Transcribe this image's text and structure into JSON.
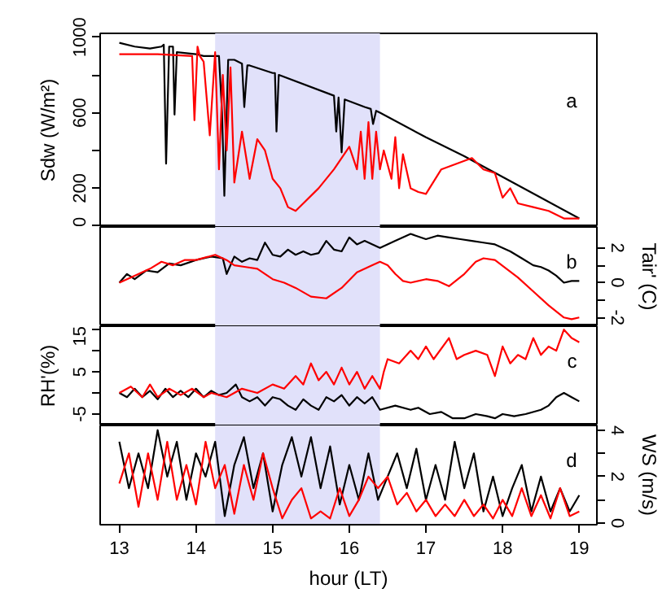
{
  "chart_data": [
    {
      "type": "line",
      "ylabel": "Sdw (W/m²)",
      "xlim": [
        12.75,
        19.23
      ],
      "ylim": [
        -5,
        1020
      ],
      "yticks": [
        0,
        200,
        {
          "value": 400,
          "label": null
        },
        600,
        {
          "value": 800,
          "label": null
        },
        1000
      ],
      "tick_labels": "y",
      "grid": false,
      "annotations": [
        "a"
      ],
      "bands": [
        {
          "axis": "x",
          "from": 14.25,
          "to": 16.4,
          "color": "#e1e1fa"
        }
      ],
      "series": [
        {
          "color": "#000000",
          "x": [
            13.0,
            13.2,
            13.4,
            13.55,
            13.58,
            13.61,
            13.65,
            13.7,
            13.72,
            13.75,
            14.0,
            14.1,
            14.3,
            14.34,
            14.37,
            14.42,
            14.5,
            14.6,
            14.63,
            14.67,
            14.7,
            15.0,
            15.03,
            15.05,
            15.08,
            15.8,
            15.83,
            15.86,
            15.9,
            15.94,
            16.2,
            16.28,
            16.31,
            16.35,
            16.4,
            17.0,
            17.5,
            18.0,
            18.5,
            19.0
          ],
          "values": [
            970,
            950,
            940,
            950,
            960,
            330,
            950,
            950,
            590,
            920,
            910,
            900,
            900,
            600,
            160,
            880,
            880,
            860,
            630,
            850,
            850,
            810,
            810,
            500,
            800,
            690,
            500,
            680,
            390,
            670,
            630,
            620,
            540,
            610,
            600,
            470,
            370,
            260,
            150,
            40
          ]
        },
        {
          "color": "#ff0000",
          "x": [
            13.0,
            13.5,
            13.95,
            13.98,
            14.02,
            14.05,
            14.1,
            14.18,
            14.25,
            14.3,
            14.35,
            14.4,
            14.45,
            14.5,
            14.6,
            14.7,
            14.8,
            14.9,
            15.0,
            15.1,
            15.2,
            15.3,
            15.4,
            15.6,
            15.8,
            16.0,
            16.1,
            16.15,
            16.2,
            16.25,
            16.3,
            16.35,
            16.4,
            16.45,
            16.55,
            16.6,
            16.65,
            16.7,
            16.8,
            16.9,
            17.0,
            17.2,
            17.4,
            17.6,
            17.75,
            17.9,
            18.0,
            18.1,
            18.2,
            18.4,
            18.6,
            18.8,
            19.0
          ],
          "values": [
            910,
            910,
            900,
            560,
            950,
            900,
            870,
            480,
            920,
            300,
            800,
            400,
            840,
            230,
            500,
            250,
            460,
            400,
            250,
            200,
            100,
            80,
            120,
            200,
            300,
            420,
            300,
            500,
            250,
            550,
            250,
            500,
            300,
            400,
            250,
            470,
            200,
            380,
            200,
            180,
            170,
            300,
            330,
            360,
            300,
            280,
            150,
            200,
            120,
            100,
            80,
            40,
            40
          ]
        }
      ]
    },
    {
      "type": "line",
      "y2label": "Tair' (C)",
      "xlim": [
        12.75,
        19.23
      ],
      "y2lim": [
        -2.5,
        3.2
      ],
      "y2ticks": [
        -2,
        {
          "value": -1,
          "label": null
        },
        0,
        {
          "value": 1,
          "label": null
        },
        2
      ],
      "tick_labels": "y2",
      "grid": false,
      "annotations": [
        "b"
      ],
      "bands": [
        {
          "axis": "x",
          "from": 14.25,
          "to": 16.4,
          "color": "#e1e1fa"
        }
      ],
      "series": [
        {
          "color": "#000000",
          "axis": "y2",
          "x": [
            13.0,
            13.1,
            13.2,
            13.35,
            13.5,
            13.65,
            13.8,
            14.0,
            14.2,
            14.35,
            14.4,
            14.5,
            14.6,
            14.7,
            14.8,
            14.9,
            15.0,
            15.1,
            15.2,
            15.3,
            15.4,
            15.5,
            15.6,
            15.7,
            15.8,
            15.9,
            16.0,
            16.1,
            16.2,
            16.4,
            16.6,
            16.8,
            17.0,
            17.15,
            17.3,
            17.45,
            17.6,
            17.75,
            17.9,
            18.1,
            18.25,
            18.4,
            18.5,
            18.6,
            18.7,
            18.8,
            18.9,
            19.0
          ],
          "values": [
            0.0,
            0.5,
            0.2,
            0.7,
            0.6,
            1.1,
            1.0,
            1.3,
            1.5,
            1.4,
            0.5,
            1.5,
            1.2,
            1.4,
            1.3,
            2.3,
            1.6,
            1.5,
            1.9,
            1.6,
            1.8,
            1.6,
            1.7,
            2.4,
            1.9,
            1.8,
            2.6,
            2.2,
            2.4,
            2.0,
            2.4,
            2.8,
            2.5,
            2.7,
            2.6,
            2.5,
            2.4,
            2.3,
            2.2,
            1.8,
            1.4,
            1.0,
            0.9,
            0.7,
            0.4,
            0.0,
            0.1,
            0.1
          ]
        },
        {
          "color": "#ff0000",
          "axis": "y2",
          "x": [
            13.0,
            13.2,
            13.4,
            13.55,
            13.7,
            13.85,
            14.0,
            14.25,
            14.4,
            14.5,
            14.65,
            14.8,
            15.0,
            15.15,
            15.3,
            15.5,
            15.7,
            15.9,
            16.1,
            16.3,
            16.4,
            16.5,
            16.6,
            16.7,
            16.8,
            17.0,
            17.15,
            17.3,
            17.5,
            17.65,
            17.75,
            17.9,
            18.05,
            18.2,
            18.4,
            18.6,
            18.8,
            18.9,
            19.0
          ],
          "values": [
            0.0,
            0.4,
            0.8,
            1.2,
            1.0,
            1.3,
            1.3,
            1.6,
            1.3,
            1.0,
            0.9,
            0.8,
            0.2,
            0.0,
            -0.3,
            -0.8,
            -0.9,
            -0.3,
            0.6,
            1.0,
            1.2,
            1.0,
            0.5,
            0.1,
            0.0,
            0.2,
            0.1,
            -0.2,
            0.5,
            1.2,
            1.4,
            1.3,
            0.8,
            0.3,
            -0.5,
            -1.3,
            -2.0,
            -2.1,
            -2.0
          ]
        }
      ]
    },
    {
      "type": "line",
      "ylabel": "RH'(%)",
      "xlim": [
        12.75,
        19.23
      ],
      "ylim": [
        -7.7,
        15.8
      ],
      "yticks": [
        -5,
        {
          "value": 0,
          "label": null
        },
        5,
        {
          "value": 10,
          "label": null
        },
        15
      ],
      "tick_labels": "y",
      "grid": false,
      "annotations": [
        "c"
      ],
      "bands": [
        {
          "axis": "x",
          "from": 14.25,
          "to": 16.4,
          "color": "#e1e1fa"
        }
      ],
      "series": [
        {
          "color": "#000000",
          "x": [
            13.0,
            13.1,
            13.2,
            13.3,
            13.4,
            13.5,
            13.6,
            13.7,
            13.8,
            13.9,
            14.0,
            14.1,
            14.2,
            14.3,
            14.4,
            14.52,
            14.6,
            14.7,
            14.8,
            14.9,
            15.0,
            15.1,
            15.2,
            15.3,
            15.4,
            15.5,
            15.6,
            15.7,
            15.8,
            15.9,
            16.0,
            16.1,
            16.2,
            16.3,
            16.4,
            16.6,
            16.8,
            16.9,
            17.05,
            17.2,
            17.35,
            17.5,
            17.65,
            17.8,
            17.9,
            18.0,
            18.15,
            18.3,
            18.5,
            18.6,
            18.7,
            18.8,
            18.9,
            19.0
          ],
          "values": [
            0,
            -1,
            1,
            -1,
            0.5,
            -1.5,
            1,
            -1,
            0.5,
            -1,
            1,
            -1,
            0.5,
            -0.5,
            0,
            2,
            -1,
            -2,
            -1,
            -3,
            -1,
            -1.5,
            -3,
            -4,
            -1.5,
            -3,
            -4,
            -1,
            -2,
            -0.5,
            -3,
            -1,
            -2.5,
            -1,
            -4,
            -3,
            -4,
            -3.5,
            -5,
            -4.5,
            -6,
            -6,
            -5,
            -5.5,
            -6,
            -5,
            -5.5,
            -5,
            -4,
            -3,
            -1,
            0,
            -1,
            -2
          ]
        },
        {
          "color": "#ff0000",
          "x": [
            13.0,
            13.15,
            13.3,
            13.4,
            13.5,
            13.65,
            13.8,
            13.95,
            14.1,
            14.2,
            14.4,
            14.6,
            14.8,
            15.0,
            15.15,
            15.3,
            15.4,
            15.5,
            15.6,
            15.7,
            15.8,
            15.9,
            16.0,
            16.1,
            16.2,
            16.3,
            16.4,
            16.45,
            16.5,
            16.65,
            16.8,
            16.9,
            17.0,
            17.1,
            17.3,
            17.4,
            17.5,
            17.65,
            17.8,
            17.9,
            18.0,
            18.1,
            18.2,
            18.3,
            18.4,
            18.5,
            18.6,
            18.7,
            18.8,
            18.9,
            19.0
          ],
          "values": [
            0,
            1.5,
            -1,
            2,
            -1,
            1,
            -0.5,
            1,
            -1,
            0,
            -1,
            1,
            0,
            2,
            1,
            4,
            2,
            7,
            3,
            5,
            2,
            6,
            2,
            5,
            1,
            4,
            1,
            5,
            8,
            7,
            10,
            8,
            11,
            8,
            13,
            8,
            9,
            10,
            9,
            4,
            11,
            7,
            9,
            8,
            13,
            9,
            11,
            10,
            15,
            13,
            12
          ]
        }
      ]
    },
    {
      "type": "line",
      "xlabel": "hour (LT)",
      "y2label": "WS (m/s)",
      "xlim": [
        12.75,
        19.23
      ],
      "xticks": [
        13,
        14,
        15,
        16,
        17,
        18,
        19
      ],
      "y2lim": [
        -0.07,
        4.2
      ],
      "y2ticks": [
        0,
        {
          "value": 1,
          "label": null
        },
        2,
        {
          "value": 3,
          "label": null
        },
        4
      ],
      "tick_labels": [
        "x",
        "y2"
      ],
      "grid": false,
      "annotations": [
        "d"
      ],
      "bands": [
        {
          "axis": "x",
          "from": 14.25,
          "to": 16.4,
          "color": "#e1e1fa"
        }
      ],
      "series": [
        {
          "color": "#000000",
          "axis": "y2",
          "x": [
            13.0,
            13.125,
            13.25,
            13.375,
            13.5,
            13.625,
            13.75,
            13.875,
            14.0,
            14.125,
            14.25,
            14.375,
            14.5,
            14.625,
            14.75,
            14.875,
            15.0,
            15.125,
            15.25,
            15.375,
            15.5,
            15.625,
            15.75,
            15.875,
            16.0,
            16.125,
            16.25,
            16.375,
            16.5,
            16.625,
            16.75,
            16.875,
            17.0,
            17.125,
            17.25,
            17.375,
            17.5,
            17.625,
            17.75,
            17.875,
            18.0,
            18.125,
            18.25,
            18.375,
            18.5,
            18.625,
            18.75,
            18.875,
            19.0
          ],
          "values": [
            3.5,
            1.5,
            3,
            1.5,
            4,
            2,
            3.5,
            1,
            3,
            2,
            3.5,
            0.3,
            2.5,
            3.7,
            1.5,
            3,
            0.5,
            2.5,
            3.7,
            2,
            3.7,
            1.5,
            3.3,
            0.8,
            2.5,
            1,
            3,
            1,
            2,
            3,
            1.5,
            3.2,
            1,
            2.5,
            1,
            3.5,
            1.5,
            3,
            0.5,
            2,
            0.3,
            1.5,
            2.5,
            0.5,
            2,
            0.5,
            1.5,
            0.5,
            1.2
          ]
        },
        {
          "color": "#ff0000",
          "axis": "y2",
          "x": [
            13.0,
            13.125,
            13.25,
            13.375,
            13.5,
            13.625,
            13.75,
            13.875,
            14.0,
            14.125,
            14.25,
            14.375,
            14.5,
            14.625,
            14.75,
            14.875,
            15.0,
            15.125,
            15.25,
            15.375,
            15.5,
            15.625,
            15.75,
            15.875,
            16.0,
            16.125,
            16.25,
            16.375,
            16.5,
            16.625,
            16.75,
            16.875,
            17.0,
            17.125,
            17.25,
            17.375,
            17.5,
            17.625,
            17.75,
            17.875,
            18.0,
            18.125,
            18.25,
            18.375,
            18.5,
            18.625,
            18.75,
            18.875,
            19.0
          ],
          "values": [
            1.7,
            3,
            0.7,
            3,
            1,
            3.5,
            1,
            2.5,
            0.8,
            3.5,
            1.5,
            2.5,
            0.4,
            2.5,
            1,
            3,
            1.5,
            0.2,
            1,
            1.5,
            0.2,
            0.5,
            0.2,
            1.5,
            0.3,
            1,
            2,
            1.5,
            2,
            0.8,
            1.3,
            0.5,
            1,
            0.3,
            0.8,
            0.3,
            1,
            0.3,
            0.8,
            0.2,
            1,
            0.3,
            1.5,
            0.3,
            1.2,
            0.2,
            1.5,
            0.3,
            0.5
          ]
        }
      ]
    }
  ]
}
